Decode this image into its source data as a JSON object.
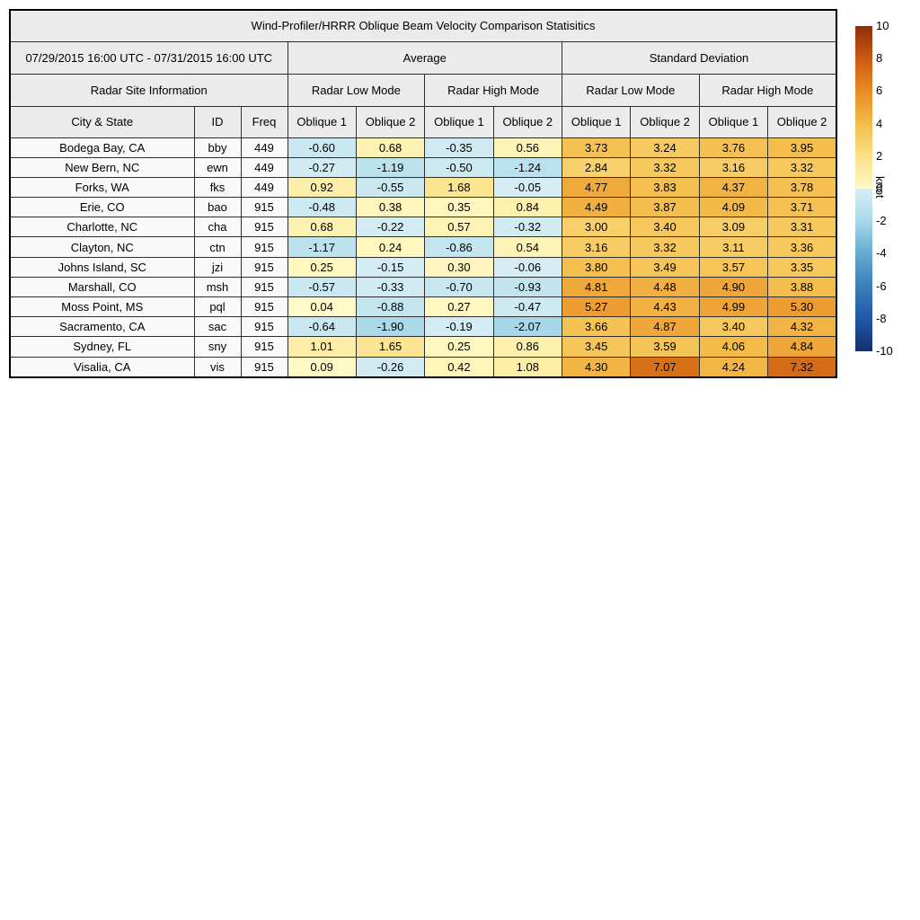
{
  "chart_data": {
    "type": "heatmap",
    "title": "Wind-Profiler/HRRR Oblique Beam Velocity Comparison Statisitics",
    "date_range": "07/29/2015 16:00 UTC - 07/31/2015 16:00 UTC",
    "group_headers": {
      "average": "Average",
      "std": "Standard Deviation"
    },
    "site_info_header": "Radar Site Information",
    "mode_headers": [
      "Radar Low Mode",
      "Radar High Mode",
      "Radar Low Mode",
      "Radar High Mode"
    ],
    "column_headers": {
      "city": "City & State",
      "id": "ID",
      "freq": "Freq"
    },
    "oblique_headers": [
      "Oblique 1",
      "Oblique 2",
      "Oblique 1",
      "Oblique 2",
      "Oblique 1",
      "Oblique 2",
      "Oblique 1",
      "Oblique 2"
    ],
    "rows": [
      {
        "city": "Bodega Bay, CA",
        "id": "bby",
        "freq": "449",
        "values": [
          "-0.60",
          "0.68",
          "-0.35",
          "0.56",
          "3.73",
          "3.24",
          "3.76",
          "3.95"
        ]
      },
      {
        "city": "New Bern, NC",
        "id": "ewn",
        "freq": "449",
        "values": [
          "-0.27",
          "-1.19",
          "-0.50",
          "-1.24",
          "2.84",
          "3.32",
          "3.16",
          "3.32"
        ]
      },
      {
        "city": "Forks, WA",
        "id": "fks",
        "freq": "449",
        "values": [
          "0.92",
          "-0.55",
          "1.68",
          "-0.05",
          "4.77",
          "3.83",
          "4.37",
          "3.78"
        ]
      },
      {
        "city": "Erie, CO",
        "id": "bao",
        "freq": "915",
        "values": [
          "-0.48",
          "0.38",
          "0.35",
          "0.84",
          "4.49",
          "3.87",
          "4.09",
          "3.71"
        ]
      },
      {
        "city": "Charlotte, NC",
        "id": "cha",
        "freq": "915",
        "values": [
          "0.68",
          "-0.22",
          "0.57",
          "-0.32",
          "3.00",
          "3.40",
          "3.09",
          "3.31"
        ]
      },
      {
        "city": "Clayton, NC",
        "id": "ctn",
        "freq": "915",
        "values": [
          "-1.17",
          "0.24",
          "-0.86",
          "0.54",
          "3.16",
          "3.32",
          "3.11",
          "3.36"
        ]
      },
      {
        "city": "Johns Island, SC",
        "id": "jzi",
        "freq": "915",
        "values": [
          "0.25",
          "-0.15",
          "0.30",
          "-0.06",
          "3.80",
          "3.49",
          "3.57",
          "3.35"
        ]
      },
      {
        "city": "Marshall, CO",
        "id": "msh",
        "freq": "915",
        "values": [
          "-0.57",
          "-0.33",
          "-0.70",
          "-0.93",
          "4.81",
          "4.48",
          "4.90",
          "3.88"
        ]
      },
      {
        "city": "Moss Point, MS",
        "id": "pql",
        "freq": "915",
        "values": [
          "0.04",
          "-0.88",
          "0.27",
          "-0.47",
          "5.27",
          "4.43",
          "4.99",
          "5.30"
        ]
      },
      {
        "city": "Sacramento, CA",
        "id": "sac",
        "freq": "915",
        "values": [
          "-0.64",
          "-1.90",
          "-0.19",
          "-2.07",
          "3.66",
          "4.87",
          "3.40",
          "4.32"
        ]
      },
      {
        "city": "Sydney, FL",
        "id": "sny",
        "freq": "915",
        "values": [
          "1.01",
          "1.65",
          "0.25",
          "0.86",
          "3.45",
          "3.59",
          "4.06",
          "4.84"
        ]
      },
      {
        "city": "Visalia, CA",
        "id": "vis",
        "freq": "915",
        "values": [
          "0.09",
          "-0.26",
          "0.42",
          "1.08",
          "4.30",
          "7.07",
          "4.24",
          "7.32"
        ]
      }
    ],
    "colorbar": {
      "label": "knot",
      "range": [
        -10,
        10
      ],
      "ticks": [
        "10",
        "8",
        "6",
        "4",
        "2",
        "0",
        "-2",
        "-4",
        "-6",
        "-8",
        "-10"
      ],
      "warm_stops": [
        [
          0,
          "#fffac8"
        ],
        [
          2,
          "#fbe187"
        ],
        [
          4,
          "#f4bc4a"
        ],
        [
          6,
          "#e98b22"
        ],
        [
          8,
          "#cb5a12"
        ],
        [
          10,
          "#8f2d0a"
        ]
      ],
      "cool_stops": [
        [
          0,
          "#d8eef4"
        ],
        [
          2,
          "#a8d9e9"
        ],
        [
          4,
          "#64aad0"
        ],
        [
          6,
          "#3a7fb9"
        ],
        [
          8,
          "#2058a8"
        ],
        [
          10,
          "#142f6d"
        ]
      ]
    },
    "colors": {
      "header_bg": "#ebebeb",
      "site_bg": "#f9f9f9",
      "border": "#2e2e2e"
    }
  }
}
